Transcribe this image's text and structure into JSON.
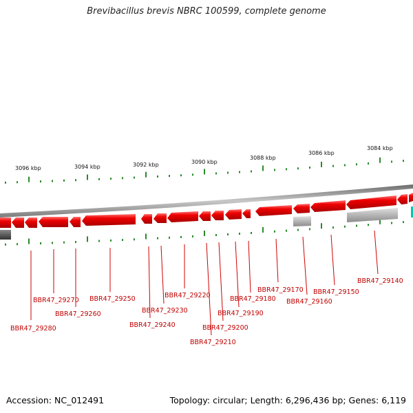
{
  "title": "Brevibacillus brevis NBRC 100599, complete genome",
  "accession": "Accession: NC_012491",
  "topology": "Topology: circular; Length: 6,296,436 bp; Genes: 6,119",
  "colors": {
    "gene": "#e00000",
    "label_line": "#d00000",
    "label_text": "#c00000",
    "tick": "#2a8a2a",
    "backbone": "#8a8a8a",
    "pseudo_gene": "#a8a8a8",
    "dark_gene": "#555555",
    "teal_gene": "#00c8b0"
  },
  "kbp_labels": [
    "3096 kbp",
    "3094 kbp",
    "3092 kbp",
    "3090 kbp",
    "3088 kbp",
    "3086 kbp",
    "3084 kbp"
  ],
  "gene_labels": [
    "BBR47_29280",
    "BBR47_29270",
    "BBR47_29260",
    "BBR47_29250",
    "BBR47_29240",
    "BBR47_29230",
    "BBR47_29220",
    "BBR47_29210",
    "BBR47_29200",
    "BBR47_29190",
    "BBR47_29180",
    "BBR47_29170",
    "BBR47_29160",
    "BBR47_29150",
    "BBR47_29140"
  ]
}
